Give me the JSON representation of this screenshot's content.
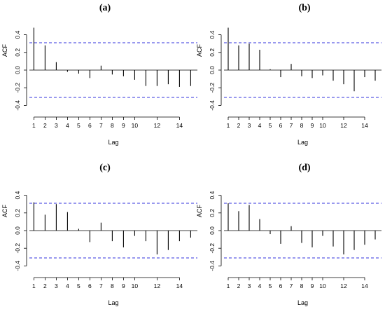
{
  "chart_data": [
    {
      "type": "bar",
      "title": "(a)",
      "xlabel": "Lag",
      "ylabel": "ACF",
      "x": [
        1,
        2,
        3,
        4,
        5,
        6,
        7,
        8,
        9,
        10,
        11,
        12,
        13,
        14,
        15
      ],
      "values": [
        0.48,
        0.28,
        0.09,
        -0.02,
        -0.04,
        -0.09,
        0.05,
        -0.05,
        -0.07,
        -0.11,
        -0.18,
        -0.18,
        -0.16,
        -0.19,
        -0.18
      ],
      "conf_bound": 0.31,
      "xlim": [
        0.6,
        15.6
      ],
      "ylim": [
        -0.5,
        0.5
      ],
      "xticks": [
        1,
        2,
        3,
        4,
        5,
        6,
        7,
        8,
        9,
        10,
        12,
        14
      ],
      "yticks": [
        -0.4,
        -0.2,
        0.0,
        0.2,
        0.4
      ],
      "ytick_labels": [
        "-0.4",
        "-0.2",
        "0.0",
        "0.2",
        "0.4"
      ]
    },
    {
      "type": "bar",
      "title": "(b)",
      "xlabel": "Lag",
      "ylabel": "ACF",
      "x": [
        1,
        2,
        3,
        4,
        5,
        6,
        7,
        8,
        9,
        10,
        11,
        12,
        13,
        14,
        15
      ],
      "values": [
        0.48,
        0.28,
        0.3,
        0.23,
        0.01,
        -0.08,
        0.07,
        -0.07,
        -0.09,
        -0.06,
        -0.12,
        -0.16,
        -0.24,
        -0.08,
        -0.12
      ],
      "conf_bound": 0.31,
      "xlim": [
        0.6,
        15.6
      ],
      "ylim": [
        -0.5,
        0.5
      ],
      "xticks": [
        1,
        2,
        3,
        4,
        5,
        6,
        7,
        8,
        9,
        10,
        12,
        14
      ],
      "yticks": [
        -0.4,
        -0.2,
        0.0,
        0.2,
        0.4
      ],
      "ytick_labels": [
        "-0.4",
        "-0.2",
        "0.0",
        "0.2",
        "0.4"
      ]
    },
    {
      "type": "bar",
      "title": "(c)",
      "xlabel": "Lag",
      "ylabel": "ACF",
      "x": [
        1,
        2,
        3,
        4,
        5,
        6,
        7,
        8,
        9,
        10,
        11,
        12,
        13,
        14,
        15
      ],
      "values": [
        0.32,
        0.18,
        0.3,
        0.21,
        0.02,
        -0.13,
        0.09,
        -0.12,
        -0.19,
        -0.06,
        -0.12,
        -0.27,
        -0.22,
        -0.12,
        -0.08
      ],
      "conf_bound": 0.31,
      "xlim": [
        0.6,
        15.6
      ],
      "ylim": [
        -0.5,
        0.5
      ],
      "xticks": [
        1,
        2,
        3,
        4,
        5,
        6,
        7,
        8,
        9,
        10,
        12,
        14
      ],
      "yticks": [
        -0.4,
        -0.2,
        0.0,
        0.2,
        0.4
      ],
      "ytick_labels": [
        "-0.4",
        "-0.2",
        "0.0",
        "0.2",
        "0.4"
      ]
    },
    {
      "type": "bar",
      "title": "(d)",
      "xlabel": "Lag",
      "ylabel": "ACF",
      "x": [
        1,
        2,
        3,
        4,
        5,
        6,
        7,
        8,
        9,
        10,
        11,
        12,
        13,
        14,
        15
      ],
      "values": [
        0.31,
        0.22,
        0.29,
        0.13,
        -0.04,
        -0.15,
        0.05,
        -0.14,
        -0.19,
        -0.06,
        -0.18,
        -0.27,
        -0.22,
        -0.16,
        -0.1
      ],
      "conf_bound": 0.31,
      "xlim": [
        0.6,
        15.6
      ],
      "ylim": [
        -0.5,
        0.5
      ],
      "xticks": [
        1,
        2,
        3,
        4,
        5,
        6,
        7,
        8,
        9,
        10,
        12,
        14
      ],
      "yticks": [
        -0.4,
        -0.2,
        0.0,
        0.2,
        0.4
      ],
      "ytick_labels": [
        "-0.4",
        "-0.2",
        "0.0",
        "0.2",
        "0.4"
      ]
    }
  ],
  "colors": {
    "bar": "#000000",
    "conf_line": "#3333dd",
    "zero_line": "#000000",
    "axis": "#000000"
  }
}
